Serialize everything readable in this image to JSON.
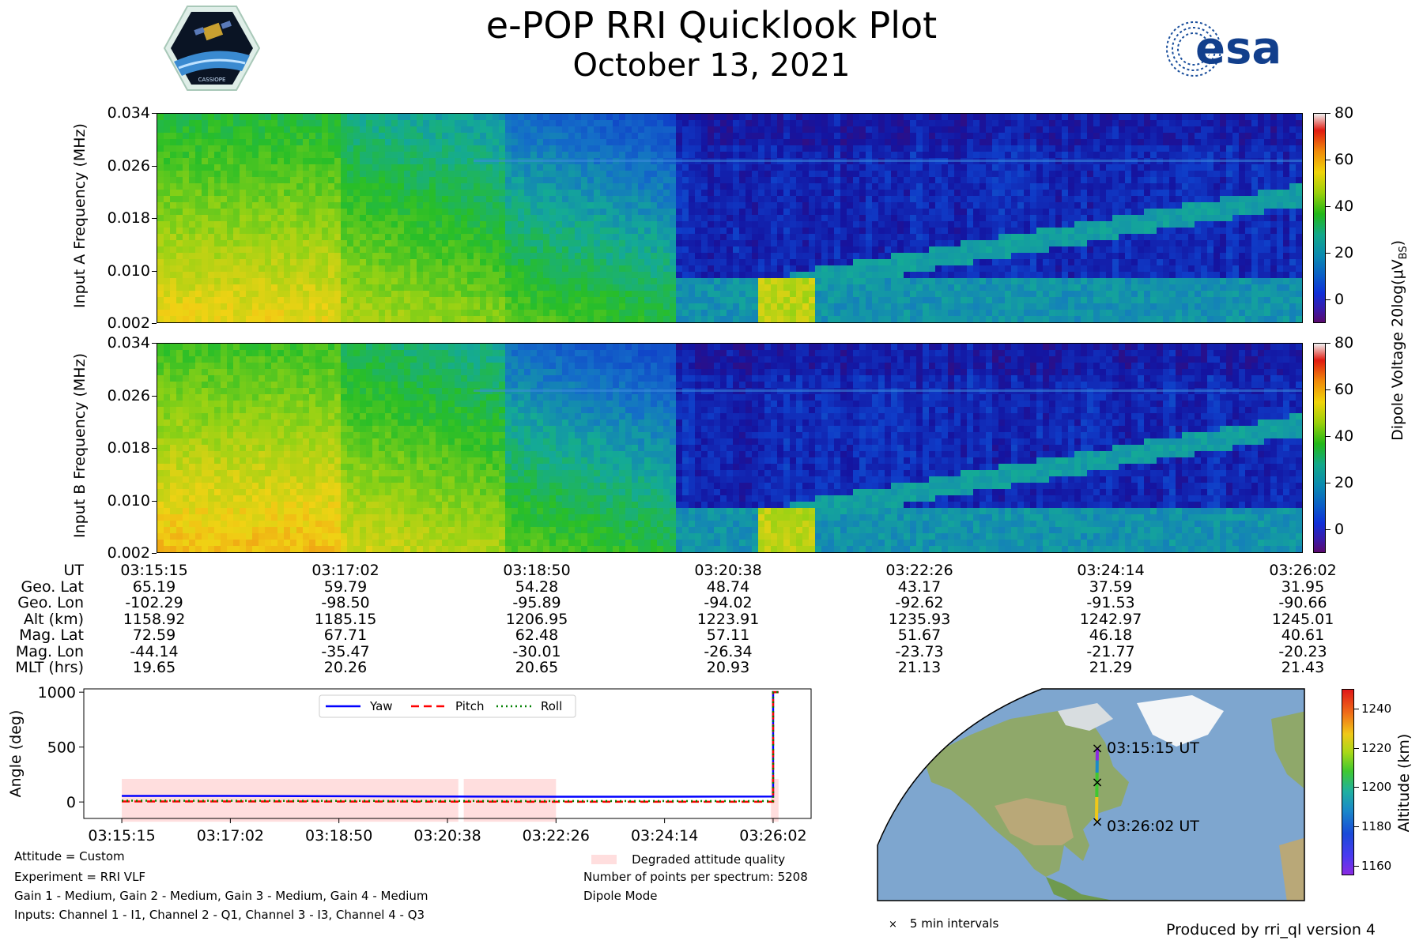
{
  "header": {
    "title": "e-POP RRI Quicklook Plot",
    "subtitle": "October 13, 2021",
    "cassiope_logo_text": "CASSIOPE",
    "esa_logo_text": "esa"
  },
  "spectrogram_a": {
    "ylabel": "Input A Frequency (MHz)",
    "yticks": [
      "0.034",
      "0.026",
      "0.018",
      "0.010",
      "0.002"
    ]
  },
  "spectrogram_b": {
    "ylabel": "Input B Frequency (MHz)",
    "yticks": [
      "0.034",
      "0.026",
      "0.018",
      "0.010",
      "0.002"
    ]
  },
  "colorbar": {
    "label": "Dipole Voltage 20log(μV",
    "label_sub": "B",
    "label_tail": "S",
    "label_end": ")",
    "ticks": [
      "80",
      "60",
      "40",
      "20",
      "0"
    ]
  },
  "summary_table": {
    "rows": [
      {
        "label": "UT",
        "values": [
          "03:15:15",
          "03:17:02",
          "03:18:50",
          "03:20:38",
          "03:22:26",
          "03:24:14",
          "03:26:02"
        ]
      },
      {
        "label": "Geo. Lat",
        "values": [
          "65.19",
          "59.79",
          "54.28",
          "48.74",
          "43.17",
          "37.59",
          "31.95"
        ]
      },
      {
        "label": "Geo. Lon",
        "values": [
          "-102.29",
          "-98.50",
          "-95.89",
          "-94.02",
          "-92.62",
          "-91.53",
          "-90.66"
        ]
      },
      {
        "label": "Alt (km)",
        "values": [
          "1158.92",
          "1185.15",
          "1206.95",
          "1223.91",
          "1235.93",
          "1242.97",
          "1245.01"
        ]
      },
      {
        "label": "Mag. Lat",
        "values": [
          "72.59",
          "67.71",
          "62.48",
          "57.11",
          "51.67",
          "46.18",
          "40.61"
        ]
      },
      {
        "label": "Mag. Lon",
        "values": [
          "-44.14",
          "-35.47",
          "-30.01",
          "-26.34",
          "-23.73",
          "-21.77",
          "-20.23"
        ]
      },
      {
        "label": "MLT (hrs)",
        "values": [
          "19.65",
          "20.26",
          "20.65",
          "20.93",
          "21.13",
          "21.29",
          "21.43"
        ]
      }
    ]
  },
  "chart_data": [
    {
      "type": "heatmap",
      "name": "Input A",
      "ylabel": "Input A Frequency (MHz)",
      "ylim": [
        0.002,
        0.034
      ],
      "x_range": [
        "03:15:15",
        "03:26:02"
      ],
      "colorbar_range": [
        -10,
        80
      ]
    },
    {
      "type": "heatmap",
      "name": "Input B",
      "ylabel": "Input B Frequency (MHz)",
      "ylim": [
        0.002,
        0.034
      ],
      "x_range": [
        "03:15:15",
        "03:26:02"
      ],
      "colorbar_range": [
        -10,
        80
      ]
    },
    {
      "type": "line",
      "ylabel": "Angle (deg)",
      "ylim": [
        -150,
        1030
      ],
      "yticks": [
        1000,
        500,
        0
      ],
      "xticks": [
        "03:15:15",
        "03:17:02",
        "03:18:50",
        "03:20:38",
        "03:22:26",
        "03:24:14",
        "03:26:02"
      ],
      "x": [
        0,
        1,
        2,
        3,
        4,
        5,
        6
      ],
      "series": [
        {
          "name": "Yaw",
          "color": "#0000ff",
          "style": "solid",
          "values": [
            55,
            55,
            52,
            50,
            48,
            48,
            50
          ],
          "end_spike": 1000
        },
        {
          "name": "Pitch",
          "color": "#ff0000",
          "style": "dashed",
          "values": [
            5,
            5,
            4,
            3,
            2,
            2,
            2
          ],
          "end_spike": 1000
        },
        {
          "name": "Roll",
          "color": "#008000",
          "style": "dotted",
          "values": [
            12,
            11,
            10,
            9,
            8,
            8,
            8
          ],
          "end_spike": 1000
        }
      ],
      "degraded_intervals": [
        [
          -0.0,
          3.1
        ],
        [
          3.15,
          4.0
        ],
        [
          5.98,
          6.05
        ]
      ],
      "degraded_label": "Degraded attitude quality",
      "legend_position": "top-center"
    },
    {
      "type": "scatter",
      "name": "ground track",
      "colorbar_label": "Altitude (km)",
      "colorbar_ticks": [
        "1240",
        "1220",
        "1200",
        "1180",
        "1160"
      ],
      "colorbar_range": [
        1155,
        1250
      ],
      "start_label": "03:15:15 UT",
      "end_label": "03:26:02 UT",
      "marker_legend": "5 min intervals"
    }
  ],
  "footer": {
    "left_notes": [
      "Attitude = Custom",
      "Experiment = RRI VLF",
      "Gain 1 - Medium, Gain 2 - Medium, Gain 3 - Medium, Gain 4 - Medium",
      "Inputs: Channel 1 - I1, Channel 2 - Q1, Channel 3 - I3, Channel 4 - Q3"
    ],
    "points_per_spectrum": "Number of points per spectrum: 5208",
    "mode": "Dipole Mode",
    "produced_by": "Produced by rri_ql version 4"
  },
  "colors": {
    "spectrogram_background": "#0d2a9a",
    "degraded_fill": "#ffdede"
  }
}
